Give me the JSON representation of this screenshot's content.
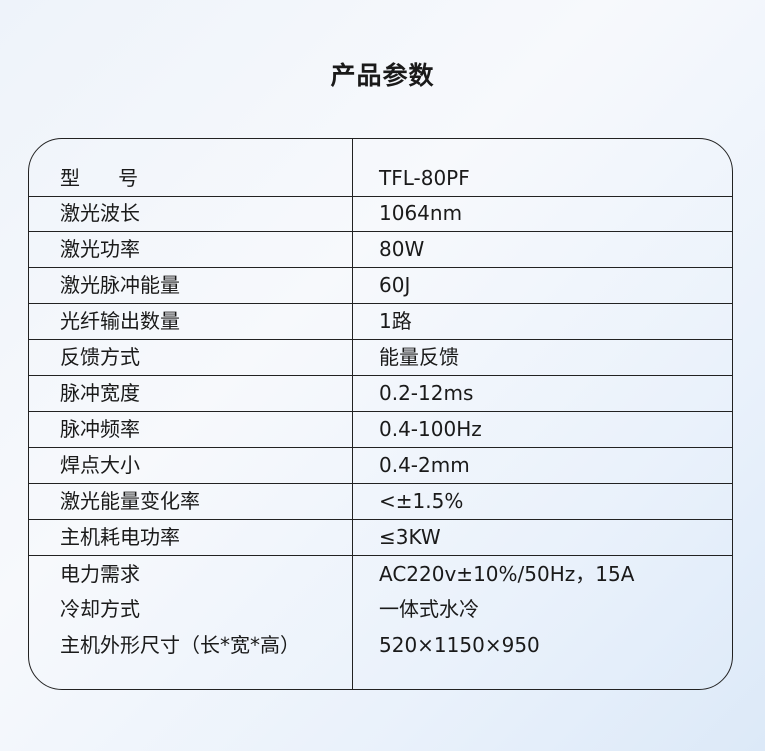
{
  "title": "产品参数",
  "rows": [
    {
      "label": "型      号",
      "value": "TFL-80PF"
    },
    {
      "label": "激光波长",
      "value": "1064nm"
    },
    {
      "label": "激光功率",
      "value": "80W"
    },
    {
      "label": "激光脉冲能量",
      "value": "60J"
    },
    {
      "label": "光纤输出数量",
      "value": "1路"
    },
    {
      "label": "反馈方式",
      "value": "能量反馈"
    },
    {
      "label": "脉冲宽度",
      "value": "0.2-12ms"
    },
    {
      "label": "脉冲频率",
      "value": "0.4-100Hz"
    },
    {
      "label": "焊点大小",
      "value": "0.4-2mm"
    },
    {
      "label": "激光能量变化率",
      "value": "<±1.5%"
    },
    {
      "label": "主机耗电功率",
      "value": "≤3KW"
    },
    {
      "label": "电力需求",
      "value": "AC220v±10%/50Hz，15A"
    },
    {
      "label": "冷却方式",
      "value": "一体式水冷"
    },
    {
      "label": "主机外形尺寸（长*宽*高）",
      "value": "520×1150×950"
    }
  ]
}
